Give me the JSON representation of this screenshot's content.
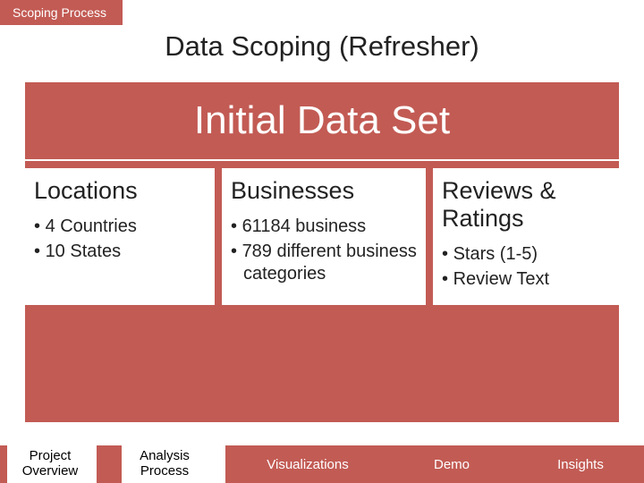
{
  "tab": {
    "label": "Scoping Process"
  },
  "title": "Data Scoping (Refresher)",
  "dataset_box": {
    "title": "Initial Data Set"
  },
  "columns": {
    "col1": {
      "title": "Locations",
      "items": [
        "4 Countries",
        "10 States"
      ]
    },
    "col2": {
      "title": "Businesses",
      "items": [
        "61184 business",
        "789 different business categories"
      ]
    },
    "col3": {
      "title": "Reviews & Ratings",
      "items": [
        "Stars (1-5)",
        "Review Text"
      ]
    }
  },
  "nav": {
    "n1a": "Project",
    "n1b": "Overview",
    "n2a": "Analysis",
    "n2b": "Process",
    "n3": "Visualizations",
    "n4": "Demo",
    "n5": "Insights"
  },
  "colors": {
    "accent": "#c25b54",
    "bg": "#ffffff",
    "text": "#222222"
  }
}
